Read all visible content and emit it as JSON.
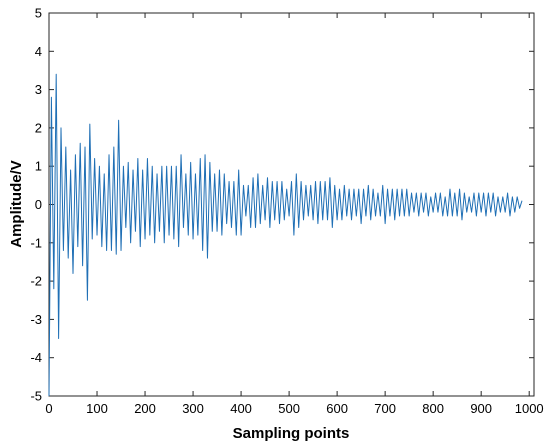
{
  "chart_data": {
    "type": "line",
    "title": "",
    "xlabel": "Sampling points",
    "ylabel": "Amplitude/V",
    "xlim": [
      0,
      1010
    ],
    "ylim": [
      -5,
      5
    ],
    "grid": false,
    "legend": "none",
    "x_ticks": [
      "0",
      "100",
      "200",
      "300",
      "400",
      "500",
      "600",
      "700",
      "800",
      "900",
      "1000"
    ],
    "y_ticks": [
      "5",
      "4",
      "3",
      "2",
      "1",
      "0",
      "-1",
      "-2",
      "-3",
      "-4",
      "-5"
    ],
    "series": [
      {
        "color": "#1f6fb5",
        "x_start": 0,
        "x_step": 5,
        "values": [
          -5.0,
          2.8,
          -2.2,
          3.4,
          -3.5,
          2.0,
          -1.2,
          1.5,
          -1.4,
          0.9,
          -1.8,
          1.3,
          -1.1,
          1.6,
          -1.6,
          1.5,
          -2.5,
          2.1,
          -0.9,
          1.2,
          -0.8,
          1.0,
          -1.1,
          0.8,
          -1.2,
          1.3,
          -1.2,
          1.5,
          -1.3,
          2.2,
          -1.2,
          1.0,
          -0.6,
          1.1,
          -1.0,
          0.9,
          -0.7,
          1.2,
          -1.1,
          0.9,
          -0.9,
          1.2,
          -0.8,
          1.0,
          -1.0,
          0.8,
          -0.7,
          1.0,
          -1.0,
          1.0,
          -0.8,
          1.0,
          -0.9,
          1.0,
          -1.1,
          1.3,
          -0.6,
          0.8,
          -0.8,
          1.1,
          -0.9,
          0.8,
          -0.8,
          1.2,
          -1.2,
          1.3,
          -1.4,
          1.1,
          -0.7,
          0.8,
          -0.7,
          0.9,
          -0.8,
          0.8,
          -0.5,
          0.6,
          -0.6,
          0.6,
          -0.8,
          0.9,
          -0.8,
          0.5,
          -0.3,
          0.5,
          -0.6,
          0.7,
          -0.6,
          0.8,
          -0.5,
          0.5,
          -0.4,
          0.7,
          -0.6,
          0.6,
          -0.4,
          0.6,
          -0.5,
          0.6,
          -0.4,
          0.4,
          -0.3,
          0.6,
          -0.8,
          0.8,
          -0.6,
          0.6,
          -0.4,
          0.5,
          -0.3,
          0.5,
          -0.4,
          0.6,
          -0.5,
          0.6,
          -0.4,
          0.6,
          -0.4,
          0.7,
          -0.6,
          0.5,
          -0.4,
          0.4,
          -0.4,
          0.5,
          -0.3,
          0.4,
          -0.4,
          0.4,
          -0.3,
          0.4,
          -0.5,
          0.4,
          -0.3,
          0.5,
          -0.4,
          0.4,
          -0.3,
          0.3,
          -0.3,
          0.5,
          -0.5,
          0.4,
          -0.3,
          0.4,
          -0.4,
          0.4,
          -0.3,
          0.4,
          -0.3,
          0.4,
          -0.3,
          0.3,
          -0.2,
          0.3,
          -0.3,
          0.3,
          -0.2,
          0.3,
          -0.3,
          0.2,
          -0.2,
          0.3,
          -0.2,
          0.3,
          -0.3,
          0.2,
          -0.3,
          0.4,
          -0.3,
          0.3,
          -0.3,
          0.4,
          -0.4,
          0.3,
          -0.2,
          0.2,
          -0.2,
          0.3,
          -0.3,
          0.3,
          -0.2,
          0.3,
          -0.3,
          0.3,
          -0.2,
          0.3,
          -0.3,
          0.2,
          -0.2,
          0.2,
          -0.2,
          0.3,
          -0.3,
          0.2,
          -0.2,
          0.2,
          -0.1,
          0.1
        ]
      }
    ]
  }
}
